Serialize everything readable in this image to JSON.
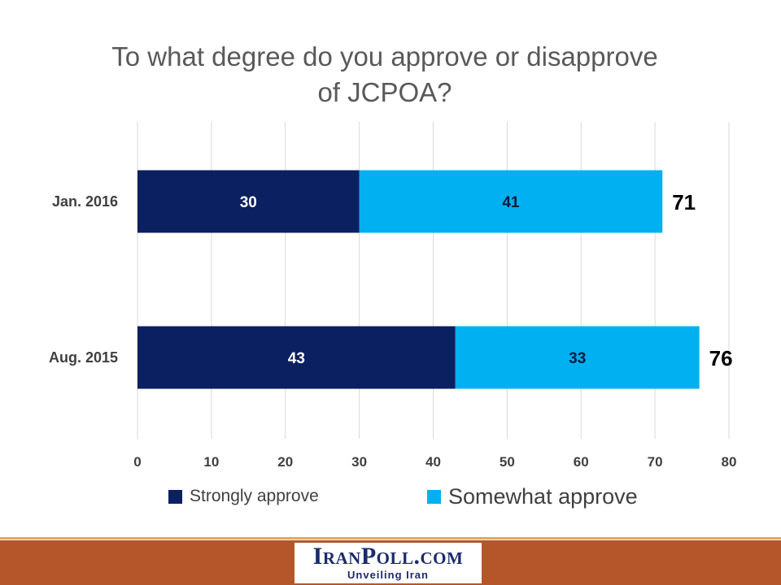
{
  "chart_data": {
    "type": "bar",
    "orientation": "horizontal",
    "stacked": true,
    "title_lines": [
      "To what degree do you approve or disapprove",
      "of JCPOA?"
    ],
    "categories": [
      "Jan. 2016",
      "Aug. 2015"
    ],
    "series": [
      {
        "name": "Strongly approve",
        "values": [
          30,
          43
        ],
        "color": "#0b2060"
      },
      {
        "name": "Somewhat approve",
        "values": [
          41,
          33
        ],
        "color": "#00b0f0"
      }
    ],
    "totals": [
      "71",
      "76"
    ],
    "xlim": [
      0,
      80
    ],
    "xticks": [
      "0",
      "10",
      "20",
      "30",
      "40",
      "50",
      "60",
      "70",
      "80"
    ],
    "grid": "vertical",
    "legend_position": "bottom"
  },
  "footer": {
    "logo_text": "IranPoll.com",
    "tagline": "Unveiling Iran",
    "band_color": "#b5552a",
    "accent_color": "#e8a65a"
  }
}
